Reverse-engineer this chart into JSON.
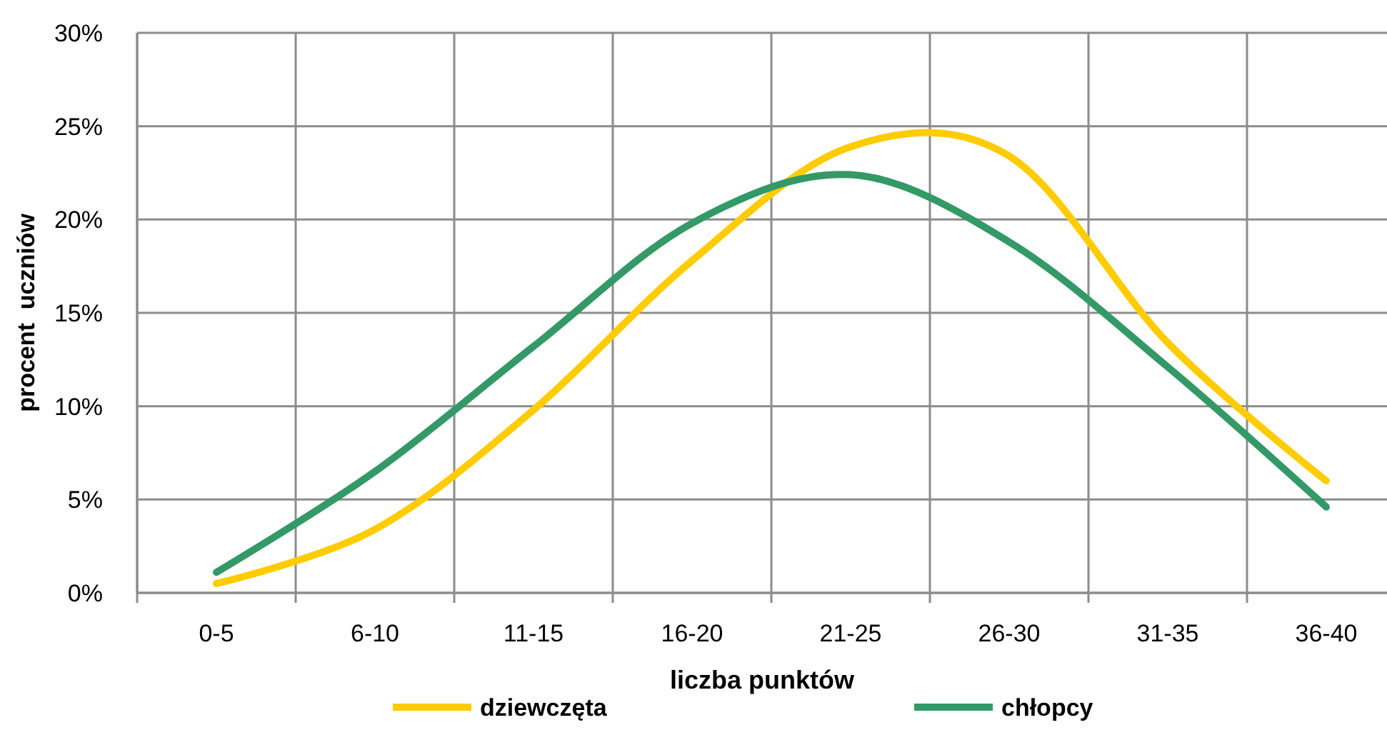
{
  "chart_data": {
    "type": "line",
    "xlabel": "liczba punktów",
    "ylabel": "procent  uczniów",
    "categories": [
      "0-5",
      "6-10",
      "11-15",
      "16-20",
      "21-25",
      "26-30",
      "31-35",
      "36-40"
    ],
    "series": [
      {
        "name": "dziewczęta",
        "color": "#ffcc00",
        "values": [
          0.5,
          3.4,
          9.8,
          17.8,
          23.9,
          23.4,
          13.4,
          6.0
        ]
      },
      {
        "name": "chłopcy",
        "color": "#339966",
        "values": [
          1.1,
          6.5,
          13.2,
          19.8,
          22.4,
          18.8,
          12.1,
          4.6
        ]
      }
    ],
    "ylim": [
      0,
      30
    ],
    "yticks": [
      {
        "value": 0,
        "label": "0%"
      },
      {
        "value": 5,
        "label": "5%"
      },
      {
        "value": 10,
        "label": "10%"
      },
      {
        "value": 15,
        "label": "15%"
      },
      {
        "value": 20,
        "label": "20%"
      },
      {
        "value": 25,
        "label": "25%"
      },
      {
        "value": 30,
        "label": "30%"
      }
    ],
    "grid": true,
    "legend": "bottom",
    "marker": "none",
    "line_style": "solid"
  }
}
